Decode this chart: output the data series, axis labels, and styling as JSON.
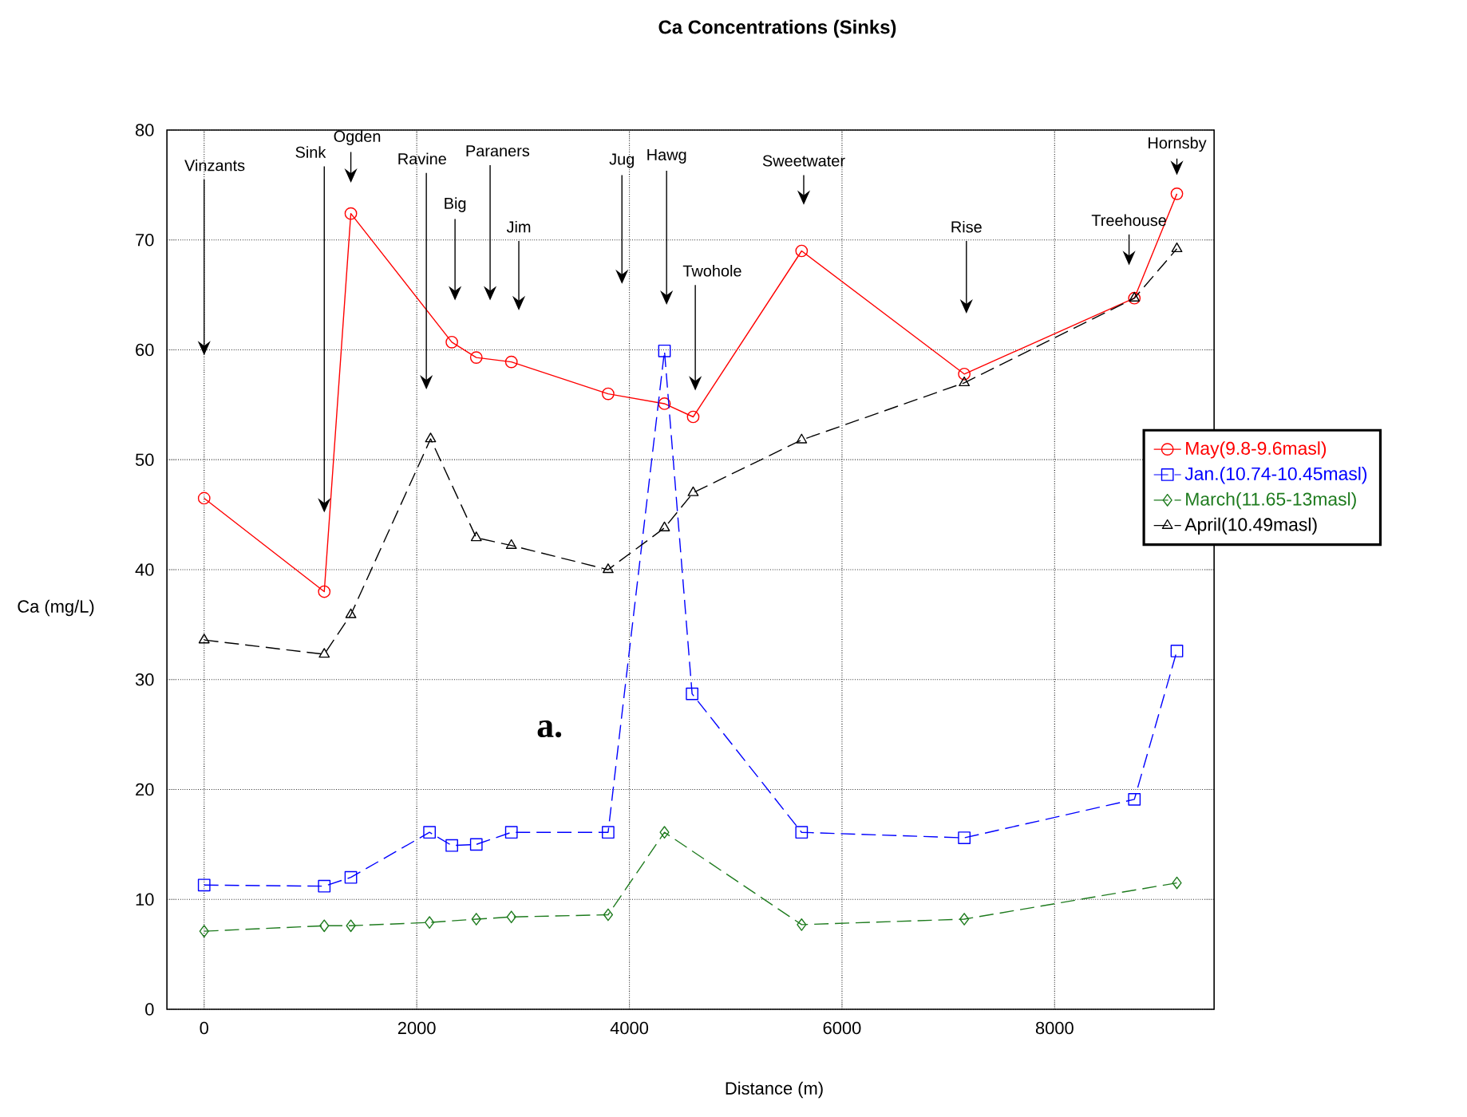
{
  "chart_data": {
    "type": "line",
    "title": "Ca Concentrations (Sinks)",
    "xlabel": "Distance (m)",
    "ylabel": "Ca (mg/L)",
    "xlim": [
      -350,
      9500
    ],
    "ylim": [
      0,
      80
    ],
    "xticks": [
      0,
      2000,
      4000,
      6000,
      8000
    ],
    "yticks": [
      0,
      10,
      20,
      30,
      40,
      50,
      60,
      70,
      80
    ],
    "grid": true,
    "legend": "right",
    "series": [
      {
        "name": "May(9.8-9.6masl)",
        "color": "#ff0000",
        "marker": "circle",
        "line_style": "solid",
        "x": [
          0,
          1130,
          1380,
          2330,
          2560,
          2890,
          3800,
          4330,
          4600,
          5620,
          7150,
          8750,
          9150
        ],
        "values": [
          46.5,
          38.0,
          72.4,
          60.7,
          59.3,
          58.9,
          56.0,
          55.1,
          53.9,
          69.0,
          57.8,
          64.7,
          74.2
        ]
      },
      {
        "name": "Jan.(10.74-10.45masl)",
        "color": "#0000ff",
        "marker": "square",
        "line_style": "dashed",
        "x": [
          0,
          1130,
          1380,
          2120,
          2330,
          2560,
          2890,
          3800,
          4330,
          4590,
          5620,
          7150,
          8750,
          9150
        ],
        "values": [
          11.3,
          11.2,
          12.0,
          16.1,
          14.9,
          15.0,
          16.1,
          16.1,
          59.9,
          28.7,
          16.1,
          15.6,
          19.1,
          32.6
        ]
      },
      {
        "name": "March(11.65-13masl)",
        "color": "#1e7b1e",
        "marker": "diamond",
        "line_style": "dashed",
        "x": [
          0,
          1130,
          1380,
          2120,
          2560,
          2890,
          3800,
          4330,
          5620,
          7150,
          9150
        ],
        "values": [
          7.1,
          7.6,
          7.6,
          7.9,
          8.2,
          8.4,
          8.6,
          16.1,
          7.7,
          8.2,
          11.5
        ]
      },
      {
        "name": "April(10.49masl)",
        "color": "#000000",
        "marker": "triangle",
        "line_style": "dashed",
        "x": [
          0,
          1130,
          1380,
          2130,
          2560,
          2890,
          3800,
          4330,
          4600,
          5620,
          7150,
          8750,
          9150
        ],
        "values": [
          33.6,
          32.3,
          35.9,
          51.9,
          42.9,
          42.2,
          40.0,
          43.8,
          47.0,
          51.8,
          57.0,
          64.7,
          69.2
        ]
      }
    ],
    "annotations": [
      "Vinzants",
      {
        "text": "Sink",
        "x": 1130,
        "y": 45.2
      },
      "Ogden",
      "Ravine",
      "Big",
      "Paraners",
      "Jim",
      "Jug",
      "Hawg",
      "Twohole",
      "Sweetwater",
      "Rise",
      "Treehouse",
      "Hornsby",
      "a."
    ]
  }
}
